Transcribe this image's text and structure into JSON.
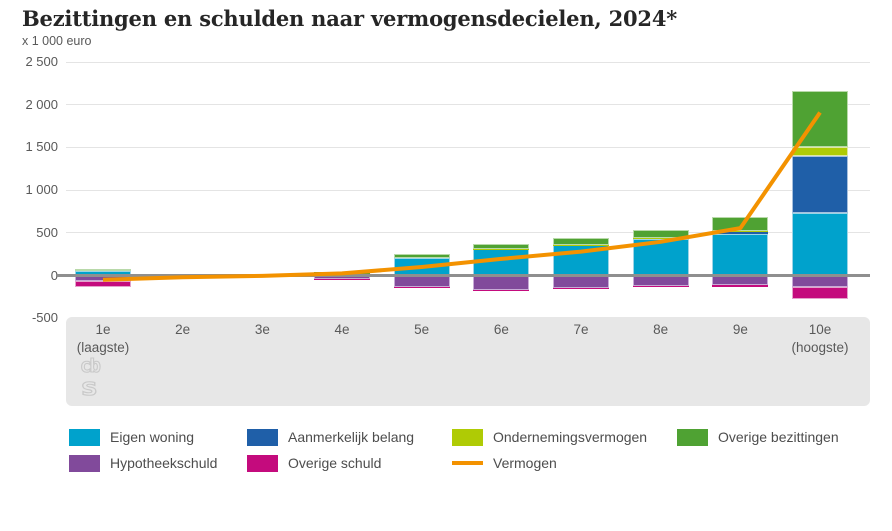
{
  "chart_data": {
    "type": "bar",
    "stacked": true,
    "title": "Bezittingen en schulden naar vermogensdecielen, 2024*",
    "ylabel": "x 1 000 euro",
    "xlabel": "",
    "ylim": [
      -500,
      2500
    ],
    "grid": true,
    "legend_position": "bottom",
    "y_ticks": [
      {
        "label": "2 500",
        "value": 2500
      },
      {
        "label": "2 000",
        "value": 2000
      },
      {
        "label": "1 500",
        "value": 1500
      },
      {
        "label": "1 000",
        "value": 1000
      },
      {
        "label": "500",
        "value": 500
      },
      {
        "label": "0",
        "value": 0
      },
      {
        "label": "-500",
        "value": -500
      }
    ],
    "categories": [
      "1e",
      "2e",
      "3e",
      "4e",
      "5e",
      "6e",
      "7e",
      "8e",
      "9e",
      "10e"
    ],
    "category_sublabels": [
      "(laagste)",
      "",
      "",
      "",
      "",
      "",
      "",
      "",
      "",
      "(hoogste)"
    ],
    "series": [
      {
        "name": "Eigen woning",
        "type": "bar",
        "color": "#00a2cc",
        "border": "#9bd4e6",
        "values": [
          50,
          2,
          8,
          20,
          210,
          310,
          355,
          430,
          490,
          730
        ]
      },
      {
        "name": "Aanmerkelijk belang",
        "type": "bar",
        "color": "#1f5fa8",
        "border": "#a6c0de",
        "values": [
          0,
          0,
          0,
          0,
          0,
          0,
          0,
          5,
          15,
          665
        ]
      },
      {
        "name": "Ondernemingsvermogen",
        "type": "bar",
        "color": "#afcb05",
        "border": "#dde8a2",
        "values": [
          0,
          0,
          0,
          0,
          0,
          5,
          5,
          10,
          15,
          105
        ]
      },
      {
        "name": "Overige bezittingen",
        "type": "bar",
        "color": "#4fa233",
        "border": "#b8d9a9",
        "values": [
          30,
          1,
          5,
          25,
          40,
          55,
          75,
          85,
          160,
          665
        ]
      },
      {
        "name": "Hypotheekschuld",
        "type": "bar",
        "color": "#814a9b",
        "border": "#c7abd6",
        "values": [
          -70,
          -1,
          -4,
          -40,
          -140,
          -165,
          -150,
          -125,
          -115,
          -140
        ]
      },
      {
        "name": "Overige schuld",
        "type": "bar",
        "color": "#c40b7d",
        "border": "#e4a2cb",
        "values": [
          -60,
          -2,
          -3,
          -10,
          -10,
          -10,
          -10,
          -10,
          -20,
          -130
        ]
      }
    ],
    "line_series": {
      "name": "Vermogen",
      "type": "line",
      "color": "#f39200",
      "values": [
        -50,
        -20,
        -5,
        25,
        100,
        195,
        280,
        395,
        555,
        1910
      ]
    },
    "colors": {
      "grid": "#e4e4e4",
      "zero_line": "#8f8f8f",
      "x_band_background": "#e7e7e7",
      "tick_text": "#595959",
      "title_text": "#262626"
    },
    "watermark": "cbs"
  }
}
